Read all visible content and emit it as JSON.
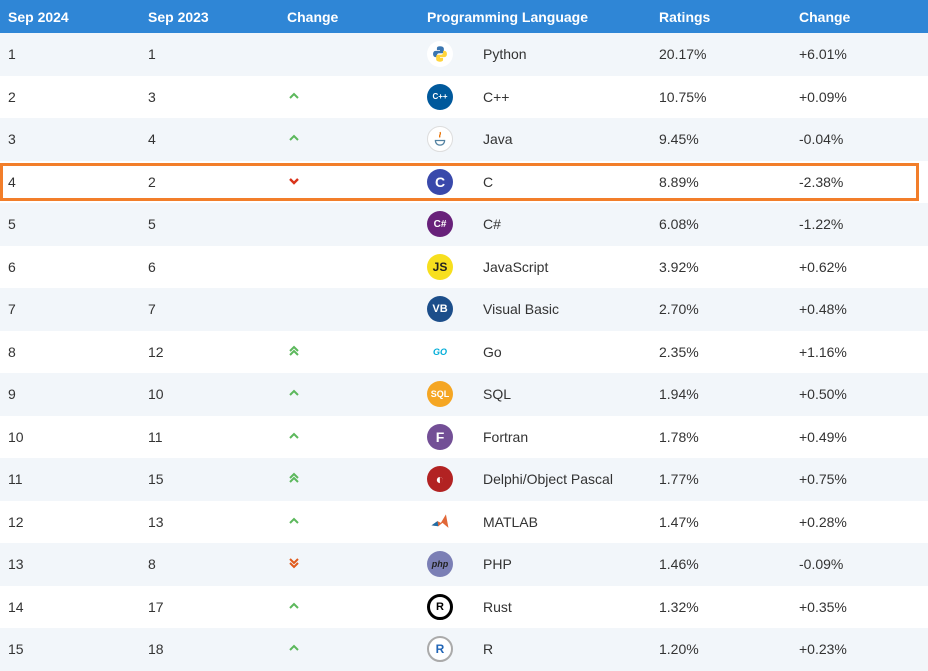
{
  "headers": {
    "rank_now": "Sep 2024",
    "rank_prev": "Sep 2023",
    "change": "Change",
    "language": "Programming Language",
    "ratings": "Ratings",
    "rating_change": "Change"
  },
  "rows": [
    {
      "now": "1",
      "prev": "1",
      "trend": "none",
      "lang": "Python",
      "logo": "python-logo",
      "ratings": "20.17%",
      "delta": "+6.01%"
    },
    {
      "now": "2",
      "prev": "3",
      "trend": "up",
      "lang": "C++",
      "logo": "cpp-logo",
      "ratings": "10.75%",
      "delta": "+0.09%"
    },
    {
      "now": "3",
      "prev": "4",
      "trend": "up",
      "lang": "Java",
      "logo": "java-logo",
      "ratings": "9.45%",
      "delta": "-0.04%"
    },
    {
      "now": "4",
      "prev": "2",
      "trend": "down",
      "lang": "C",
      "logo": "c-logo",
      "ratings": "8.89%",
      "delta": "-2.38%"
    },
    {
      "now": "5",
      "prev": "5",
      "trend": "none",
      "lang": "C#",
      "logo": "csharp-logo",
      "ratings": "6.08%",
      "delta": "-1.22%"
    },
    {
      "now": "6",
      "prev": "6",
      "trend": "none",
      "lang": "JavaScript",
      "logo": "javascript-logo",
      "logo_text": "JS",
      "ratings": "3.92%",
      "delta": "+0.62%"
    },
    {
      "now": "7",
      "prev": "7",
      "trend": "none",
      "lang": "Visual Basic",
      "logo": "visual-basic-logo",
      "logo_text": "VB",
      "ratings": "2.70%",
      "delta": "+0.48%"
    },
    {
      "now": "8",
      "prev": "12",
      "trend": "up2",
      "lang": "Go",
      "logo": "go-logo",
      "logo_text": "GO",
      "ratings": "2.35%",
      "delta": "+1.16%"
    },
    {
      "now": "9",
      "prev": "10",
      "trend": "up",
      "lang": "SQL",
      "logo": "sql-logo",
      "logo_text": "SQL",
      "ratings": "1.94%",
      "delta": "+0.50%"
    },
    {
      "now": "10",
      "prev": "11",
      "trend": "up",
      "lang": "Fortran",
      "logo": "fortran-logo",
      "logo_text": "F",
      "ratings": "1.78%",
      "delta": "+0.49%"
    },
    {
      "now": "11",
      "prev": "15",
      "trend": "up2",
      "lang": "Delphi/Object Pascal",
      "logo": "delphi-logo",
      "ratings": "1.77%",
      "delta": "+0.75%"
    },
    {
      "now": "12",
      "prev": "13",
      "trend": "up",
      "lang": "MATLAB",
      "logo": "matlab-logo",
      "ratings": "1.47%",
      "delta": "+0.28%"
    },
    {
      "now": "13",
      "prev": "8",
      "trend": "down2",
      "lang": "PHP",
      "logo": "php-logo",
      "logo_text": "php",
      "ratings": "1.46%",
      "delta": "-0.09%"
    },
    {
      "now": "14",
      "prev": "17",
      "trend": "up",
      "lang": "Rust",
      "logo": "rust-logo",
      "logo_text": "R",
      "ratings": "1.32%",
      "delta": "+0.35%"
    },
    {
      "now": "15",
      "prev": "18",
      "trend": "up",
      "lang": "R",
      "logo": "r-logo",
      "logo_text": "R",
      "ratings": "1.20%",
      "delta": "+0.23%"
    }
  ],
  "highlighted_row": "4",
  "colors": {
    "header_bg": "#2f86d6",
    "row_alt_bg": "#f2f6fa",
    "highlight_border": "#f27e2a",
    "up_arrow": "#5cb85c",
    "down_arrow": "#d9331a"
  }
}
